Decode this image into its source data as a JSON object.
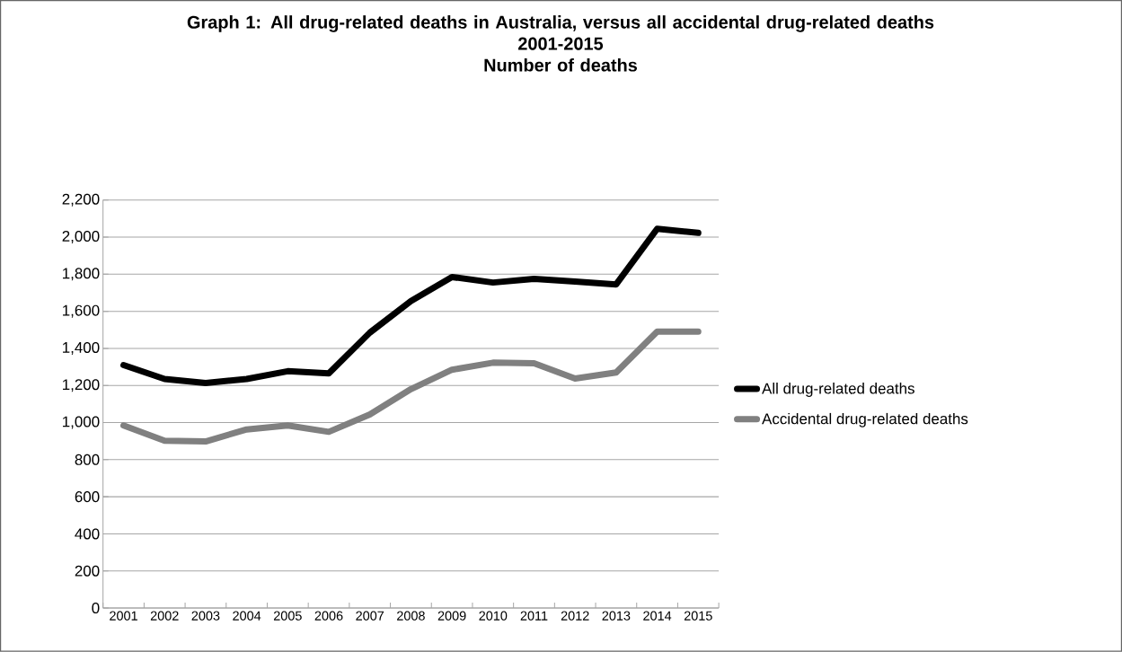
{
  "chart_data": {
    "type": "line",
    "title": "Graph 1: All drug-related deaths in Australia, versus all accidental drug-related deaths",
    "subtitle": "2001-2015",
    "annotations": [
      "Number of deaths"
    ],
    "categories": [
      "2001",
      "2002",
      "2003",
      "2004",
      "2005",
      "2006",
      "2007",
      "2008",
      "2009",
      "2010",
      "2011",
      "2012",
      "2013",
      "2014",
      "2015"
    ],
    "series": [
      {
        "name": "All drug-related deaths",
        "color": "#000000",
        "values": [
          1310,
          1235,
          1213,
          1235,
          1277,
          1265,
          1485,
          1655,
          1785,
          1755,
          1775,
          1760,
          1745,
          2045,
          2023
        ]
      },
      {
        "name": "Accidental drug-related deaths",
        "color": "#808080",
        "values": [
          984,
          902,
          898,
          963,
          984,
          950,
          1044,
          1180,
          1285,
          1323,
          1320,
          1237,
          1270,
          1490,
          1490
        ]
      }
    ],
    "ylim": [
      0,
      2200
    ],
    "yticks": [
      {
        "value": 0,
        "label": "0"
      },
      {
        "value": 200,
        "label": "200"
      },
      {
        "value": 400,
        "label": "400"
      },
      {
        "value": 600,
        "label": "600"
      },
      {
        "value": 800,
        "label": "800"
      },
      {
        "value": 1000,
        "label": "1,000"
      },
      {
        "value": 1200,
        "label": "1,200"
      },
      {
        "value": 1400,
        "label": "1,400"
      },
      {
        "value": 1600,
        "label": "1,600"
      },
      {
        "value": 1800,
        "label": "1,800"
      },
      {
        "value": 2000,
        "label": "2,000"
      },
      {
        "value": 2200,
        "label": "2,200"
      }
    ],
    "grid": "y",
    "legend": "right",
    "marker": "none",
    "line_style": "solid"
  }
}
